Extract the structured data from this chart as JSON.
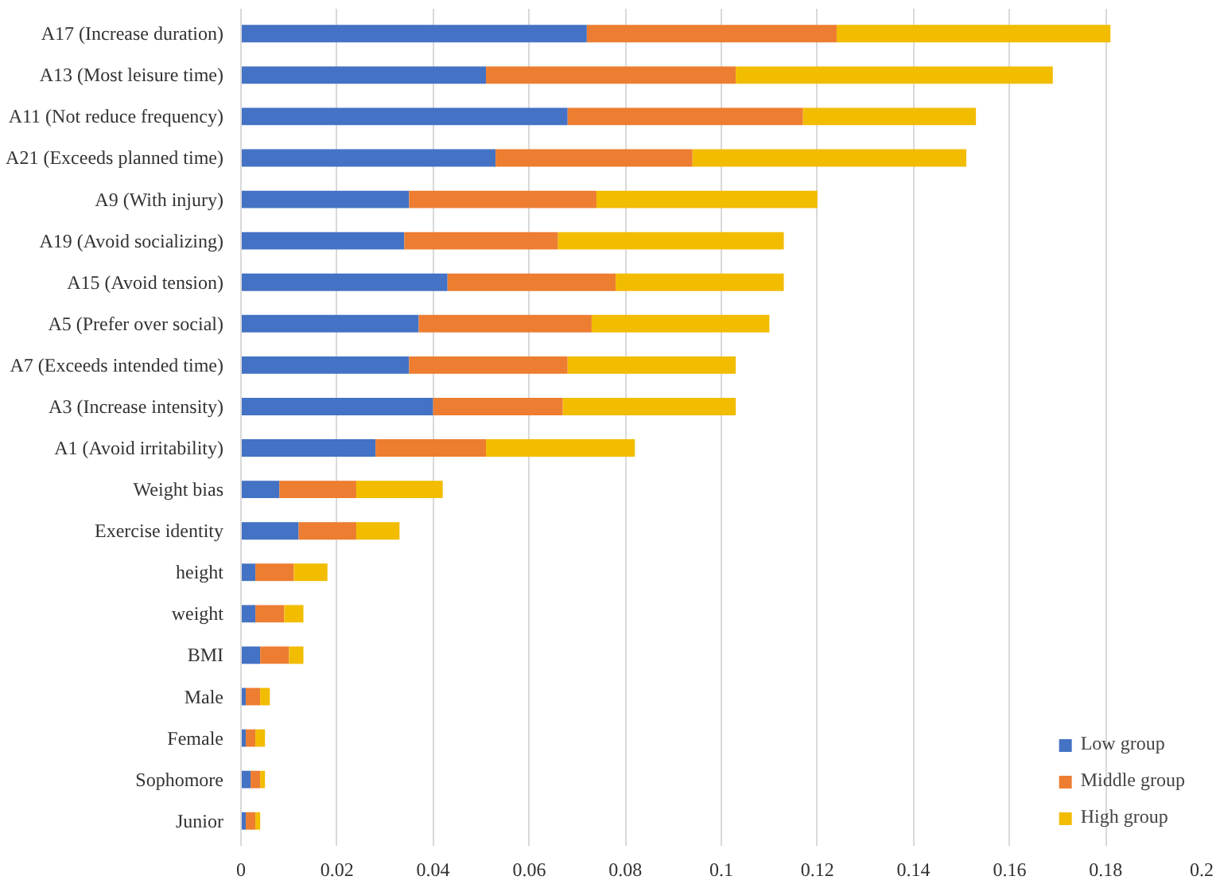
{
  "chart_data": {
    "type": "bar",
    "orientation": "horizontal",
    "stacked": true,
    "categories": [
      "A17 (Increase duration)",
      "A13 (Most leisure time)",
      "A11 (Not reduce frequency)",
      "A21 (Exceeds planned time)",
      "A9 (With injury)",
      "A19 (Avoid socializing)",
      "A15 (Avoid tension)",
      "A5 (Prefer over social)",
      "A7 (Exceeds intended time)",
      "A3 (Increase intensity)",
      "A1 (Avoid irritability)",
      "Weight bias",
      "Exercise identity",
      "height",
      "weight",
      "BMI",
      "Male",
      "Female",
      "Sophomore",
      "Junior"
    ],
    "series": [
      {
        "name": "Low group",
        "color": "#4472c4",
        "values": [
          0.072,
          0.051,
          0.068,
          0.053,
          0.035,
          0.034,
          0.043,
          0.037,
          0.035,
          0.04,
          0.028,
          0.008,
          0.012,
          0.003,
          0.003,
          0.004,
          0.001,
          0.001,
          0.002,
          0.001
        ]
      },
      {
        "name": "Middle group",
        "color": "#ed7d31",
        "values": [
          0.052,
          0.052,
          0.049,
          0.041,
          0.039,
          0.032,
          0.035,
          0.036,
          0.033,
          0.027,
          0.023,
          0.016,
          0.012,
          0.008,
          0.006,
          0.006,
          0.003,
          0.002,
          0.002,
          0.002
        ]
      },
      {
        "name": "High group",
        "color": "#f2bc00",
        "values": [
          0.057,
          0.066,
          0.036,
          0.057,
          0.046,
          0.047,
          0.035,
          0.037,
          0.035,
          0.036,
          0.031,
          0.018,
          0.009,
          0.007,
          0.004,
          0.003,
          0.002,
          0.002,
          0.001,
          0.001
        ]
      }
    ],
    "xlim": [
      0,
      0.2
    ],
    "xticks": [
      0,
      0.02,
      0.04,
      0.06,
      0.08,
      0.1,
      0.12,
      0.14,
      0.16,
      0.18,
      0.2
    ],
    "grid": "x",
    "legend": "bottom right"
  }
}
